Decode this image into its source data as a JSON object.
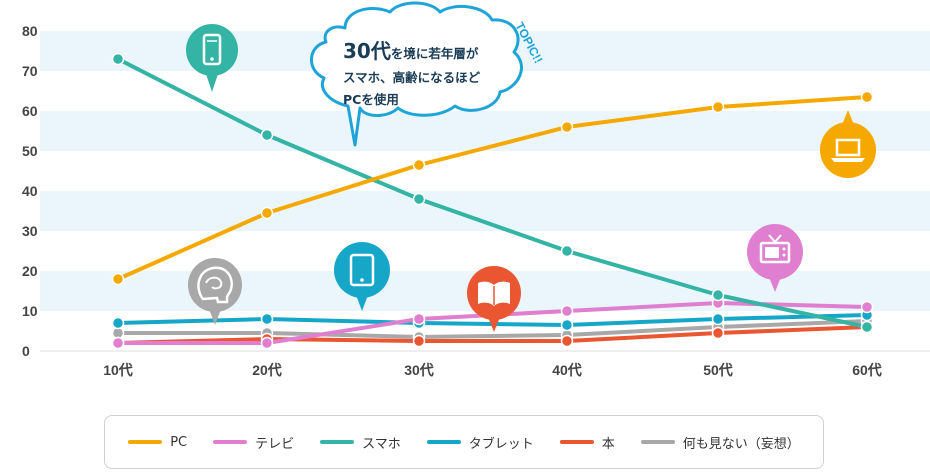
{
  "chart_data": {
    "type": "line",
    "categories": [
      "10代",
      "20代",
      "30代",
      "40代",
      "50代",
      "60代"
    ],
    "ylim": [
      0,
      80
    ],
    "yticks": [
      "0",
      "10",
      "20",
      "30",
      "40",
      "50",
      "60",
      "70",
      "80"
    ],
    "series": [
      {
        "name": "PC",
        "color": "#f5a800",
        "values": [
          18,
          34.5,
          46.5,
          56,
          61,
          63.5
        ]
      },
      {
        "name": "テレビ",
        "color": "#e07fd0",
        "values": [
          2,
          2,
          8,
          10,
          12,
          11
        ]
      },
      {
        "name": "スマホ",
        "color": "#34b4a4",
        "values": [
          73,
          54,
          38,
          25,
          14,
          6
        ]
      },
      {
        "name": "タブレット",
        "color": "#16a6c8",
        "values": [
          7,
          8,
          7,
          6.5,
          8,
          9
        ]
      },
      {
        "name": "本",
        "color": "#ea5532",
        "values": [
          2,
          3,
          2.5,
          2.5,
          4.5,
          6
        ]
      },
      {
        "name": "何も見ない（妄想）",
        "color": "#a8a8a8",
        "values": [
          4.5,
          4.5,
          3.5,
          4,
          6,
          7.5
        ]
      }
    ],
    "callout": {
      "line1_big": "30代",
      "line1_rest": "を境に若年層が",
      "line2": "スマホ、高齢になるほど",
      "line3": "PCを使用",
      "tag": "TOPIC!!"
    },
    "icons": [
      {
        "name": "smartphone-icon",
        "color": "#34b4a4"
      },
      {
        "name": "brain-icon",
        "color": "#a8a8a8"
      },
      {
        "name": "tablet-icon",
        "color": "#16a6c8"
      },
      {
        "name": "book-icon",
        "color": "#ea5532"
      },
      {
        "name": "tv-icon",
        "color": "#e07fd0"
      },
      {
        "name": "laptop-icon",
        "color": "#f5a800"
      }
    ]
  }
}
